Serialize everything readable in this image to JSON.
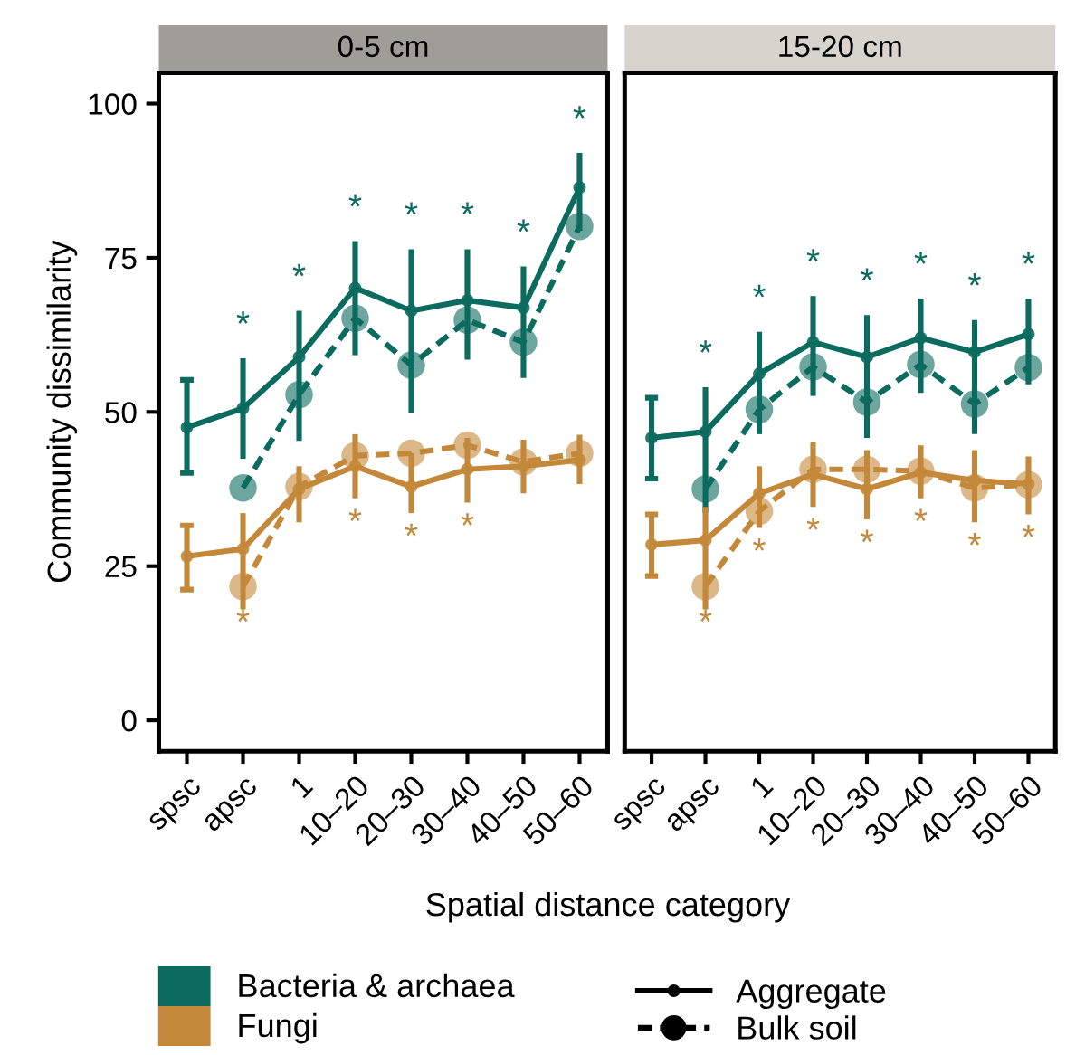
{
  "chart_data": [
    {
      "type": "line",
      "title": "0-5 cm",
      "ylabel": "Community dissimilarity",
      "xlabel": "Spatial distance category",
      "categories": [
        "spsc",
        "apsc",
        "1",
        "10–20",
        "20–30",
        "30–40",
        "40–50",
        "50–60"
      ],
      "ylim": [
        -5,
        105
      ],
      "yticks": [
        0,
        25,
        50,
        75,
        100
      ],
      "grid": false,
      "legend": "bottom",
      "marker": "circle",
      "series": [
        {
          "name": "Bacteria & archaea",
          "color": "#0b6b5f",
          "line_style": "solid",
          "values": [
            47.5,
            50.6,
            58.9,
            70.1,
            66.4,
            68.1,
            66.9,
            86.4
          ],
          "errors": [
            [
              40.1,
              55.2
            ],
            [
              42.4,
              58.7
            ],
            [
              45.3,
              66.4
            ],
            [
              59.2,
              77.7
            ],
            [
              49.9,
              76.4
            ],
            [
              58.5,
              76.4
            ],
            [
              55.5,
              73.6
            ],
            [
              79.4,
              92.0
            ]
          ],
          "value_labels": [
            null,
            "*",
            "*",
            "*",
            "*",
            "*",
            "*",
            "*"
          ]
        },
        {
          "color": "#0b6b5f",
          "line_style": "dashed",
          "values": [
            null,
            37.7,
            52.8,
            65.2,
            57.6,
            64.9,
            61.3,
            80.1
          ]
        },
        {
          "name": "Fungi",
          "color": "#c4883a",
          "line_style": "solid",
          "values": [
            26.6,
            27.8,
            37.5,
            41.2,
            37.9,
            40.7,
            41.2,
            42.2
          ],
          "errors": [
            [
              21.2,
              31.6
            ],
            [
              18.0,
              33.6
            ],
            [
              32.1,
              41.2
            ],
            [
              36.0,
              46.4
            ],
            [
              33.6,
              43.3
            ],
            [
              35.3,
              45.8
            ],
            [
              36.8,
              45.5
            ],
            [
              38.3,
              46.3
            ]
          ],
          "value_labels": [
            null,
            null,
            null,
            "*",
            "*",
            "*",
            null,
            null
          ]
        },
        {
          "color": "#c4883a",
          "line_style": "dashed",
          "values": [
            null,
            21.7,
            37.9,
            42.9,
            43.3,
            44.6,
            41.9,
            43.3
          ],
          "value_labels": [
            null,
            "*",
            null,
            null,
            null,
            null,
            null,
            null
          ]
        }
      ],
      "annotations": [
        "Aggregate",
        "Bulk soil"
      ]
    },
    {
      "type": "line",
      "title": "15-20 cm",
      "categories": [
        "spsc",
        "apsc",
        "1",
        "10–20",
        "20–30",
        "30–40",
        "40–50",
        "50–60"
      ],
      "ylim": [
        -5,
        105
      ],
      "tick_labels": "x",
      "grid": false,
      "marker": "circle",
      "series": [
        {
          "color": "#0b6b5f",
          "line_style": "solid",
          "values": [
            45.8,
            46.8,
            56.2,
            61.3,
            58.9,
            62.0,
            59.7,
            62.6
          ],
          "errors": [
            [
              39.2,
              52.3
            ],
            [
              33.6,
              54.0
            ],
            [
              46.4,
              63.0
            ],
            [
              52.6,
              68.8
            ],
            [
              45.8,
              65.7
            ],
            [
              53.1,
              68.4
            ],
            [
              46.4,
              64.9
            ],
            [
              54.5,
              68.4
            ]
          ],
          "value_labels": [
            null,
            "*",
            "*",
            "*",
            "*",
            "*",
            "*",
            "*"
          ]
        },
        {
          "color": "#0b6b5f",
          "line_style": "dashed",
          "values": [
            null,
            37.5,
            50.4,
            57.3,
            51.6,
            57.7,
            51.3,
            57.2
          ]
        },
        {
          "color": "#c4883a",
          "line_style": "solid",
          "values": [
            28.5,
            29.2,
            36.8,
            39.9,
            37.5,
            40.2,
            38.9,
            38.3
          ],
          "errors": [
            [
              23.4,
              33.4
            ],
            [
              18.0,
              34.6
            ],
            [
              31.2,
              41.2
            ],
            [
              34.6,
              45.1
            ],
            [
              32.6,
              43.8
            ],
            [
              36.0,
              44.6
            ],
            [
              32.1,
              43.8
            ],
            [
              33.4,
              42.8
            ]
          ],
          "value_labels": [
            null,
            null,
            "*",
            "*",
            "*",
            "*",
            "*",
            "*"
          ]
        },
        {
          "color": "#c4883a",
          "line_style": "dashed",
          "values": [
            null,
            21.7,
            33.9,
            40.7,
            40.7,
            40.4,
            37.7,
            38.2
          ],
          "value_labels": [
            null,
            "*",
            null,
            null,
            null,
            null,
            null,
            null
          ]
        }
      ]
    }
  ]
}
